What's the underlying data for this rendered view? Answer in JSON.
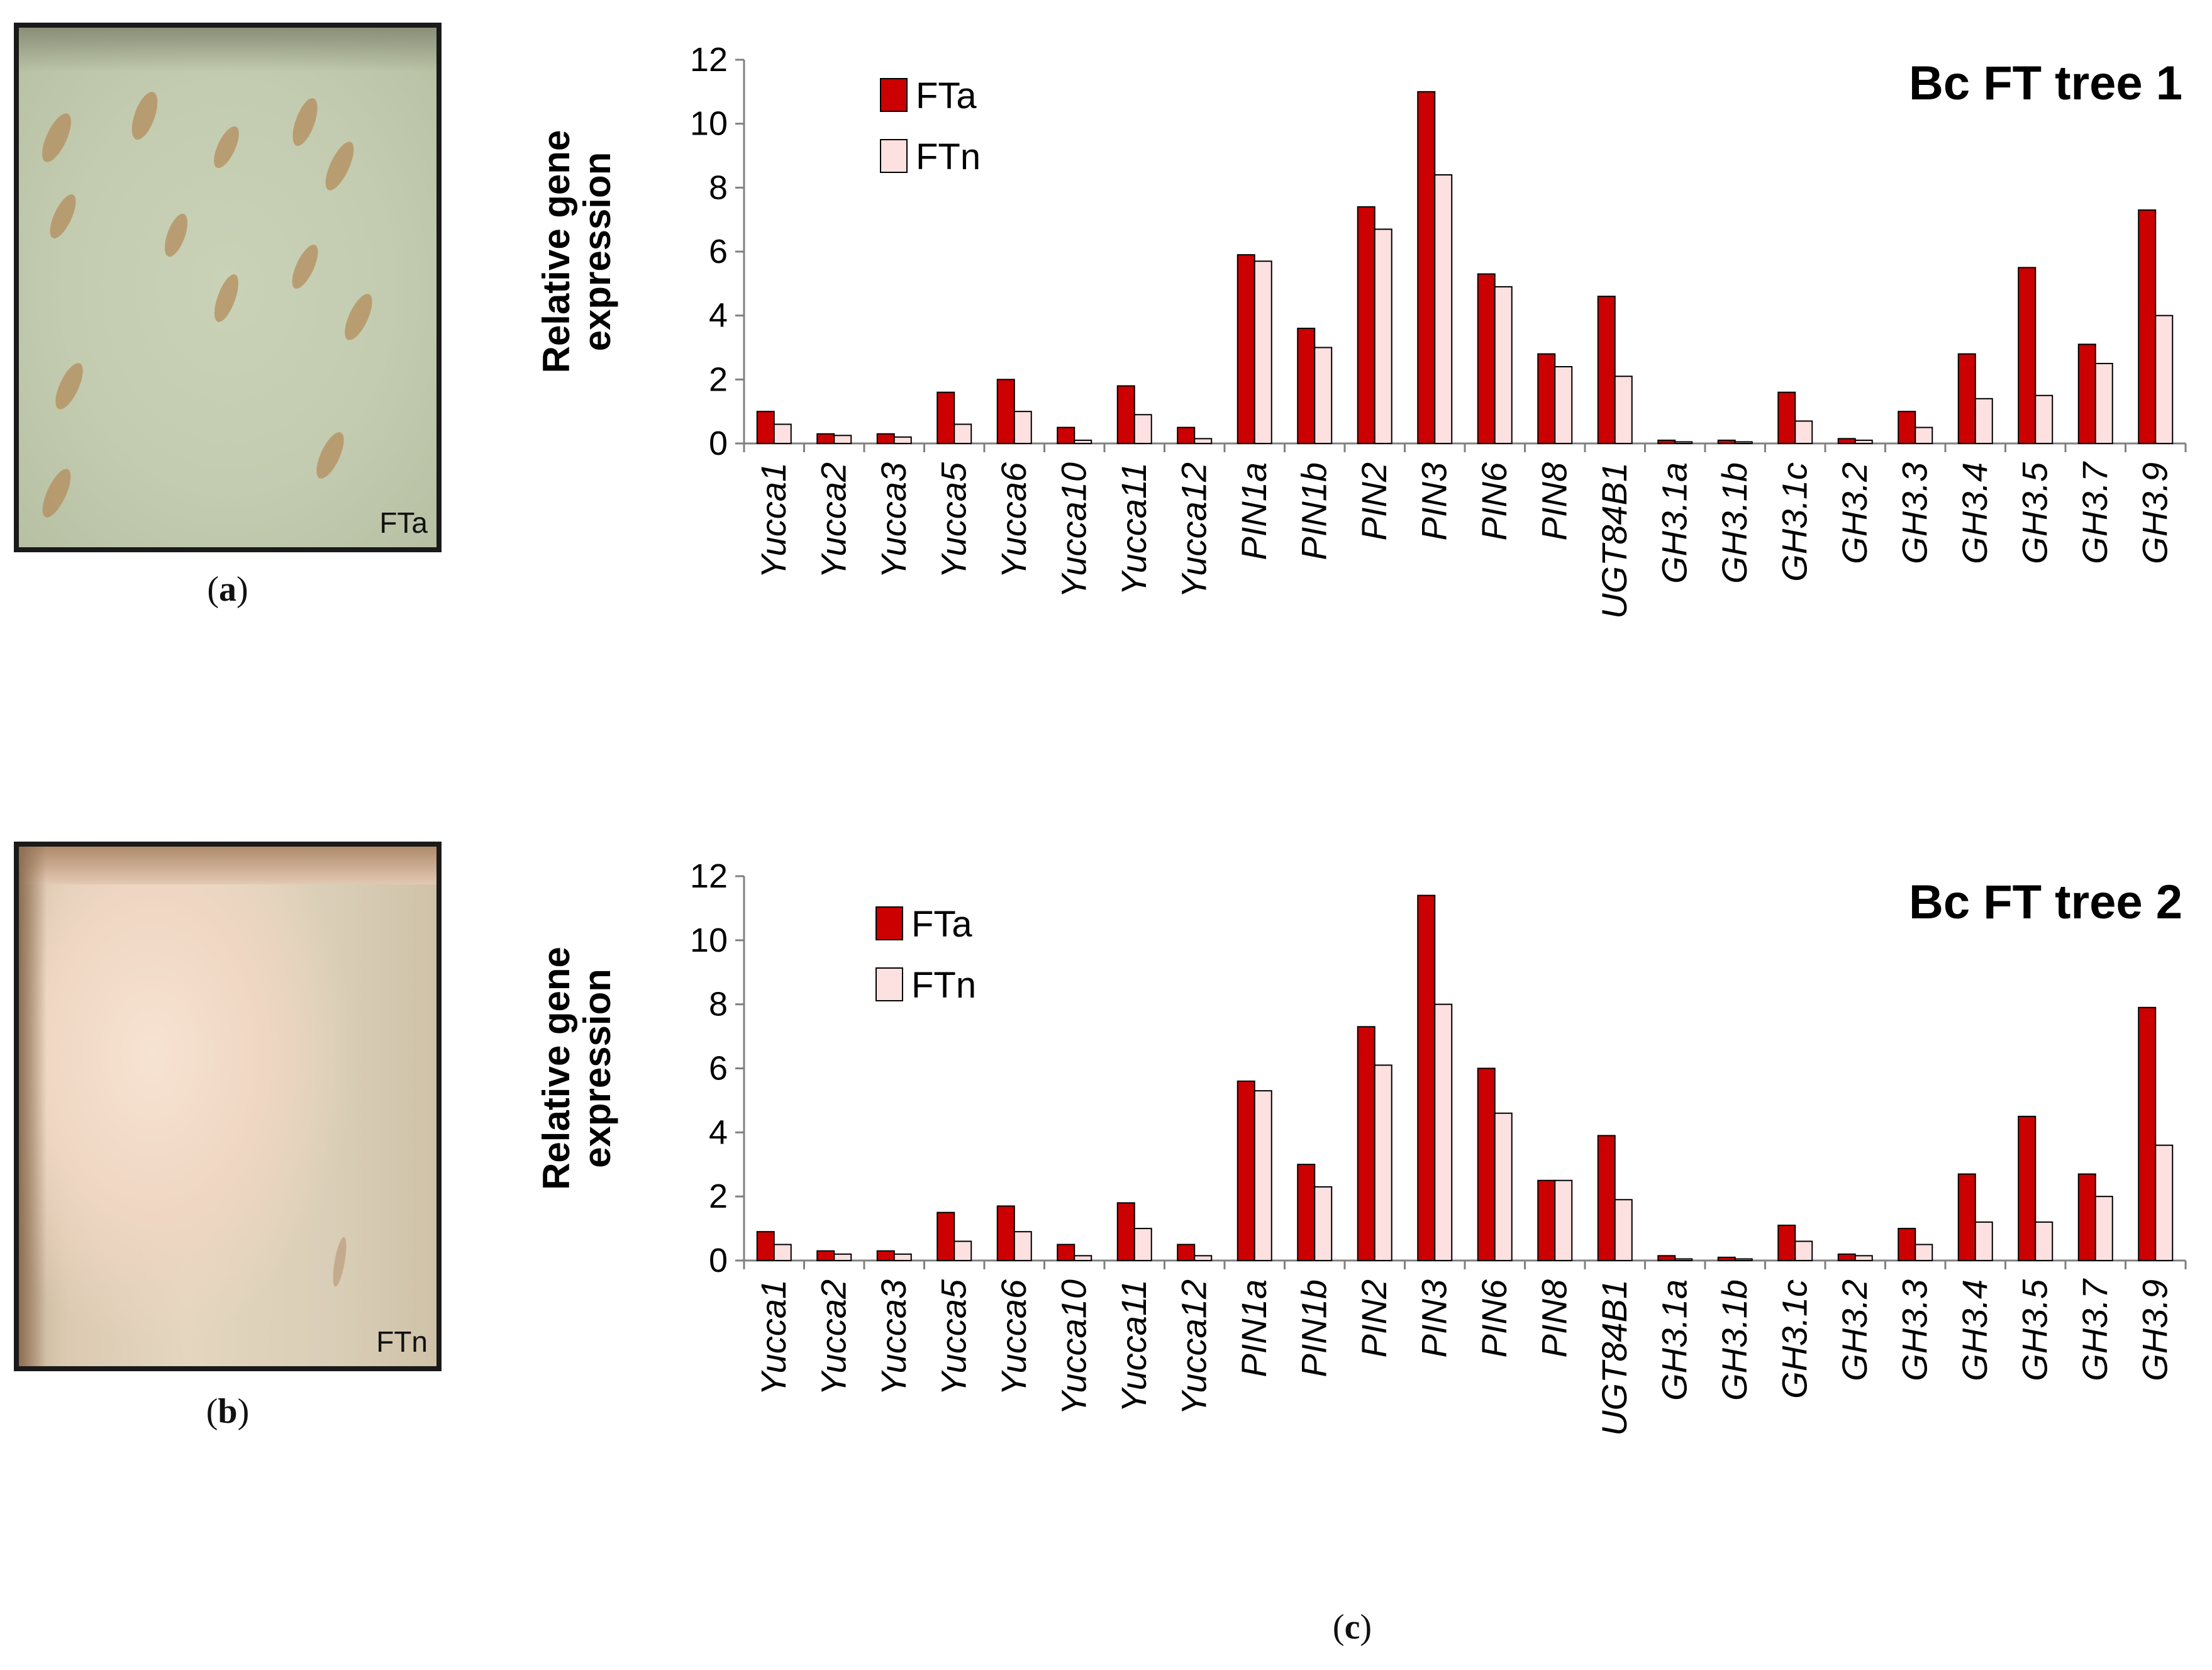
{
  "colors": {
    "fta": "#cc0000",
    "ftn": "#fde0e0",
    "bar_stroke": "#000000",
    "axis": "#808080"
  },
  "photos": {
    "a": {
      "label": "FTa",
      "icon": "wood-section-photo-with-lesions"
    },
    "b": {
      "label": "FTn",
      "icon": "wood-section-photo-normal"
    }
  },
  "panel_labels": {
    "a": {
      "open": "(",
      "letter": "a",
      "close": ")"
    },
    "b": {
      "open": "(",
      "letter": "b",
      "close": ")"
    },
    "c": {
      "open": "(",
      "letter": "c",
      "close": ")"
    }
  },
  "chart_data": [
    {
      "type": "bar",
      "title": "Bc FT tree 1",
      "ylabel": [
        "Relative gene",
        "expression"
      ],
      "xlabel": "",
      "ylim": [
        0,
        12
      ],
      "yticks": [
        0,
        2,
        4,
        6,
        8,
        10,
        12
      ],
      "legend": "top-left",
      "grid": false,
      "categories": [
        "Yucca1",
        "Yucca2",
        "Yucca3",
        "Yucca5",
        "Yucca6",
        "Yucca10",
        "Yucca11",
        "Yucca12",
        "PIN1a",
        "PIN1b",
        "PIN2",
        "PIN3",
        "PIN6",
        "PIN8",
        "UGT84B1",
        "GH3.1a",
        "GH3.1b",
        "GH3.1c",
        "GH3.2",
        "GH3.3",
        "GH3.4",
        "GH3.5",
        "GH3.7",
        "GH3.9"
      ],
      "series": [
        {
          "name": "FTa",
          "values": [
            1.0,
            0.3,
            0.3,
            1.6,
            2.0,
            0.5,
            1.8,
            0.5,
            5.9,
            3.6,
            7.4,
            11.0,
            5.3,
            2.8,
            4.6,
            0.1,
            0.1,
            1.6,
            0.15,
            1.0,
            2.8,
            5.5,
            3.1,
            7.3
          ]
        },
        {
          "name": "FTn",
          "values": [
            0.6,
            0.25,
            0.2,
            0.6,
            1.0,
            0.1,
            0.9,
            0.15,
            5.7,
            3.0,
            6.7,
            8.4,
            4.9,
            2.4,
            2.1,
            0.05,
            0.05,
            0.7,
            0.1,
            0.5,
            1.4,
            1.5,
            2.5,
            4.0
          ]
        }
      ]
    },
    {
      "type": "bar",
      "title": "Bc FT tree 2",
      "ylabel": [
        "Relative gene",
        "expression"
      ],
      "xlabel": "",
      "ylim": [
        0,
        12
      ],
      "yticks": [
        0,
        2,
        4,
        6,
        8,
        10,
        12
      ],
      "legend": "top-left",
      "grid": false,
      "categories": [
        "Yucca1",
        "Yucca2",
        "Yucca3",
        "Yucca5",
        "Yucca6",
        "Yucca10",
        "Yucca11",
        "Yucca12",
        "PIN1a",
        "PIN1b",
        "PIN2",
        "PIN3",
        "PIN6",
        "PIN8",
        "UGT84B1",
        "GH3.1a",
        "GH3.1b",
        "GH3.1c",
        "GH3.2",
        "GH3.3",
        "GH3.4",
        "GH3.5",
        "GH3.7",
        "GH3.9"
      ],
      "series": [
        {
          "name": "FTa",
          "values": [
            0.9,
            0.3,
            0.3,
            1.5,
            1.7,
            0.5,
            1.8,
            0.5,
            5.6,
            3.0,
            7.3,
            11.4,
            6.0,
            2.5,
            3.9,
            0.15,
            0.1,
            1.1,
            0.2,
            1.0,
            2.7,
            4.5,
            2.7,
            7.9
          ]
        },
        {
          "name": "FTn",
          "values": [
            0.5,
            0.2,
            0.2,
            0.6,
            0.9,
            0.15,
            1.0,
            0.15,
            5.3,
            2.3,
            6.1,
            8.0,
            4.6,
            2.5,
            1.9,
            0.05,
            0.05,
            0.6,
            0.15,
            0.5,
            1.2,
            1.2,
            2.0,
            3.6
          ]
        }
      ]
    }
  ]
}
